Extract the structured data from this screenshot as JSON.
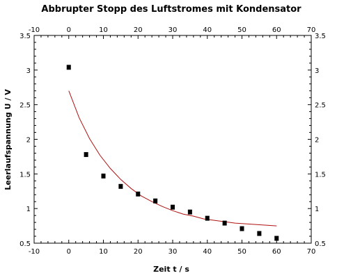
{
  "chart_data": {
    "type": "scatter",
    "title": "Abbrupter Stopp des Luftstromes mit Kondensator",
    "xlabel": "Zeit t / s",
    "ylabel": "Leerlaufspannung U / V",
    "xlim": [
      -10,
      70
    ],
    "ylim": [
      0.5,
      3.5
    ],
    "x_ticks": [
      -10,
      0,
      10,
      20,
      30,
      40,
      50,
      60,
      70
    ],
    "y_ticks": [
      0.5,
      1,
      1.5,
      2,
      2.5,
      3,
      3.5
    ],
    "x_tick_labels": [
      "-10",
      "0",
      "10",
      "20",
      "30",
      "40",
      "50",
      "60",
      "70"
    ],
    "y_tick_labels": [
      "0.5",
      "1",
      "1.5",
      "2",
      "2.5",
      "3",
      "3.5"
    ],
    "grid": false,
    "series": [
      {
        "kind": "points",
        "color": "#000000",
        "x": [
          0,
          5,
          10,
          15,
          20,
          25,
          30,
          35,
          40,
          45,
          50,
          55,
          60
        ],
        "y": [
          3.04,
          1.78,
          1.47,
          1.32,
          1.21,
          1.11,
          1.02,
          0.95,
          0.86,
          0.79,
          0.71,
          0.64,
          0.57
        ],
        "y_err": 0.03
      },
      {
        "kind": "fit",
        "color": "#b01010",
        "x": [
          0,
          3,
          6,
          9,
          12,
          15,
          18,
          21,
          24,
          27,
          30,
          33,
          36,
          39,
          42,
          45,
          48,
          51,
          54,
          57,
          60
        ],
        "y": [
          2.7,
          2.31,
          2.01,
          1.77,
          1.58,
          1.42,
          1.29,
          1.18,
          1.1,
          1.03,
          0.97,
          0.92,
          0.89,
          0.85,
          0.83,
          0.81,
          0.79,
          0.78,
          0.77,
          0.76,
          0.75
        ]
      }
    ]
  }
}
